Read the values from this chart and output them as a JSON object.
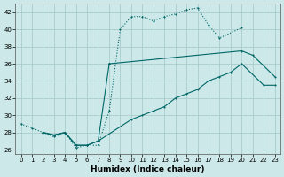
{
  "xlabel": "Humidex (Indice chaleur)",
  "bg_color": "#cce8e8",
  "grid_color": "#aacccc",
  "line_color": "#006666",
  "xlim": [
    -0.5,
    23.5
  ],
  "ylim": [
    25.5,
    43.0
  ],
  "xticks": [
    0,
    1,
    2,
    3,
    4,
    5,
    6,
    7,
    8,
    9,
    10,
    11,
    12,
    13,
    14,
    15,
    16,
    17,
    18,
    19,
    20,
    21,
    22,
    23
  ],
  "yticks": [
    26,
    28,
    30,
    32,
    34,
    36,
    38,
    40,
    42
  ],
  "line1": {
    "x": [
      0,
      1,
      2,
      3,
      4,
      5,
      6,
      7,
      8,
      9,
      10,
      11,
      12,
      13,
      14,
      15,
      16,
      17,
      18,
      20
    ],
    "y": [
      29.0,
      28.5,
      28.0,
      27.5,
      28.0,
      26.2,
      26.5,
      26.5,
      30.5,
      40.0,
      41.5,
      41.5,
      41.0,
      41.5,
      41.8,
      42.3,
      42.5,
      40.5,
      39.0,
      40.2
    ]
  },
  "line2": {
    "segments": [
      {
        "x": [
          2,
          3,
          4,
          5,
          6,
          7,
          8
        ],
        "y": [
          28.0,
          27.7,
          28.0,
          26.5,
          26.5,
          27.0,
          36.0
        ]
      },
      {
        "x": [
          8,
          20,
          21,
          23
        ],
        "y": [
          36.0,
          37.5,
          37.0,
          34.5
        ]
      }
    ]
  },
  "line3": {
    "x": [
      2,
      3,
      4,
      5,
      6,
      7,
      10,
      11,
      12,
      13,
      14,
      15,
      16,
      17,
      18,
      19,
      20,
      22,
      23
    ],
    "y": [
      28.0,
      27.7,
      28.0,
      26.5,
      26.5,
      27.0,
      29.5,
      30.0,
      30.5,
      31.0,
      32.0,
      32.5,
      33.0,
      34.0,
      34.5,
      35.0,
      36.0,
      33.5,
      33.5
    ]
  }
}
